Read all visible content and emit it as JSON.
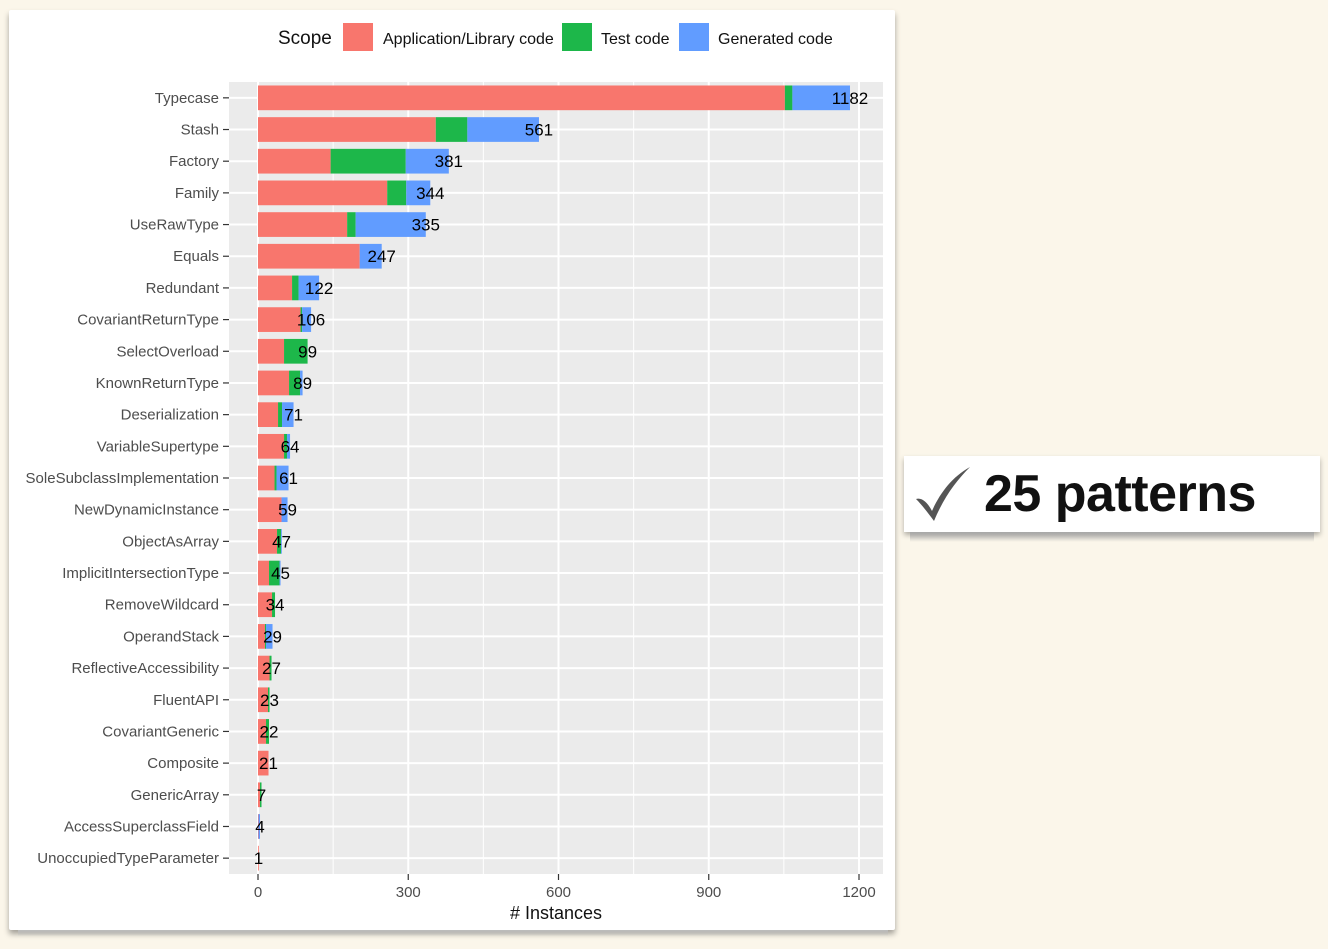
{
  "badge": {
    "text": "25 patterns",
    "icon": "checkmark-icon"
  },
  "chart_data": {
    "type": "bar",
    "orientation": "horizontal",
    "stacked": true,
    "legend": {
      "title": "Scope",
      "position": "top",
      "entries": [
        "Application/Library code",
        "Test code",
        "Generated code"
      ]
    },
    "colors": {
      "Application/Library code": "#f8766d",
      "Test code": "#1db74a",
      "Generated code": "#619cff",
      "panel": "#ebebeb",
      "grid": "#ffffff"
    },
    "xlabel": "# Instances",
    "ylabel": "",
    "xlim": [
      0,
      1250
    ],
    "xticks": [
      0,
      300,
      600,
      900,
      1200
    ],
    "grid": true,
    "categories": [
      "Typecase",
      "Stash",
      "Factory",
      "Family",
      "UseRawType",
      "Equals",
      "Redundant",
      "CovariantReturnType",
      "SelectOverload",
      "KnownReturnType",
      "Deserialization",
      "VariableSupertype",
      "SoleSubclassImplementation",
      "NewDynamicInstance",
      "ObjectAsArray",
      "ImplicitIntersectionType",
      "RemoveWildcard",
      "OperandStack",
      "ReflectiveAccessibility",
      "FluentAPI",
      "CovariantGeneric",
      "Composite",
      "GenericArray",
      "AccessSuperclassField",
      "UnoccupiedTypeParameter"
    ],
    "totals": [
      1182,
      561,
      381,
      344,
      335,
      247,
      122,
      106,
      99,
      89,
      71,
      64,
      61,
      59,
      47,
      45,
      34,
      29,
      27,
      23,
      22,
      21,
      7,
      4,
      1
    ],
    "series": [
      {
        "name": "Application/Library code",
        "values": [
          1052,
          355,
          145,
          258,
          178,
          203,
          68,
          85,
          52,
          62,
          40,
          52,
          33,
          47,
          38,
          22,
          28,
          14,
          23,
          20,
          16,
          21,
          4,
          1,
          1
        ]
      },
      {
        "name": "Test code",
        "values": [
          15,
          63,
          150,
          38,
          17,
          0,
          13,
          3,
          47,
          22,
          8,
          6,
          4,
          0,
          8,
          21,
          6,
          2,
          4,
          3,
          6,
          0,
          3,
          0,
          0
        ]
      },
      {
        "name": "Generated code",
        "values": [
          115,
          143,
          86,
          48,
          140,
          44,
          41,
          18,
          0,
          5,
          23,
          6,
          24,
          12,
          1,
          2,
          0,
          13,
          0,
          0,
          0,
          0,
          0,
          3,
          0
        ]
      }
    ]
  }
}
